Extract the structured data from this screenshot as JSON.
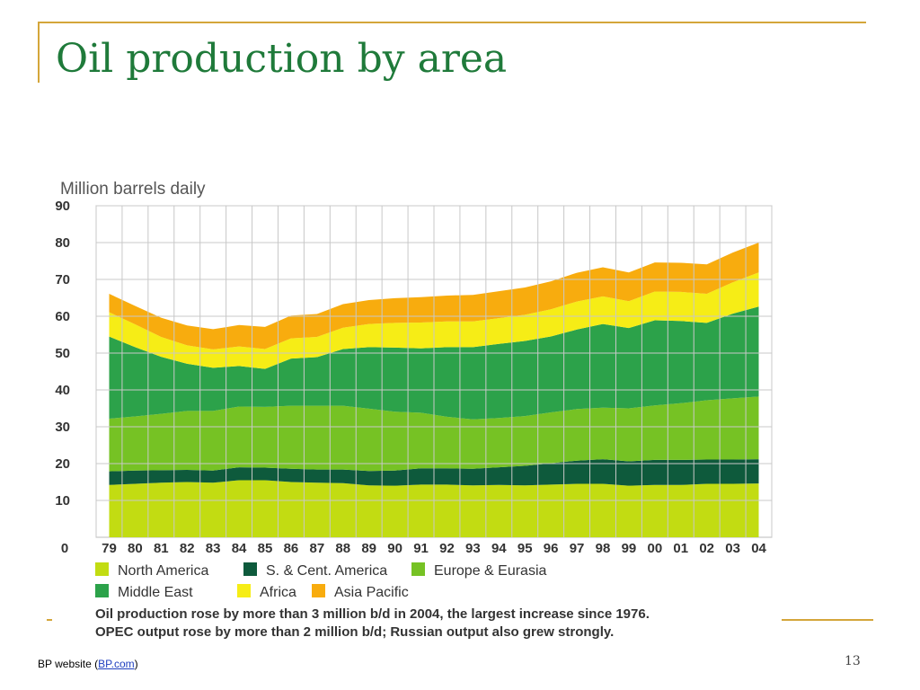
{
  "slide": {
    "title": "Oil production by area",
    "footer_text": "BP website (",
    "footer_link": "BP.com",
    "footer_close": ")",
    "page_number": "13"
  },
  "chart_data": {
    "type": "area",
    "stacked": true,
    "ylabel": "Million barrels daily",
    "xlabel": "",
    "ylim": [
      0,
      90
    ],
    "yticks": [
      0,
      10,
      20,
      30,
      40,
      50,
      60,
      70,
      80,
      90
    ],
    "grid": true,
    "legend_position": "bottom",
    "categories": [
      "79",
      "80",
      "81",
      "82",
      "83",
      "84",
      "85",
      "86",
      "87",
      "88",
      "89",
      "90",
      "91",
      "92",
      "93",
      "94",
      "95",
      "96",
      "97",
      "98",
      "99",
      "00",
      "01",
      "02",
      "03",
      "04"
    ],
    "series": [
      {
        "name": "North America",
        "color": "#c2dc12",
        "values": [
          14.2,
          14.5,
          14.8,
          15.0,
          14.8,
          15.5,
          15.5,
          15.0,
          14.8,
          14.7,
          14.1,
          14.0,
          14.3,
          14.3,
          14.1,
          14.2,
          14.1,
          14.3,
          14.5,
          14.5,
          14.0,
          14.2,
          14.2,
          14.5,
          14.5,
          14.6
        ]
      },
      {
        "name": "S. & Cent. America",
        "color": "#0e5a3c",
        "values": [
          3.7,
          3.6,
          3.4,
          3.3,
          3.3,
          3.5,
          3.4,
          3.6,
          3.6,
          3.7,
          3.9,
          4.1,
          4.4,
          4.4,
          4.5,
          4.8,
          5.3,
          5.8,
          6.3,
          6.7,
          6.6,
          6.8,
          6.8,
          6.6,
          6.6,
          6.6
        ]
      },
      {
        "name": "Europe & Eurasia",
        "color": "#76c224",
        "values": [
          14.3,
          14.7,
          15.3,
          16.0,
          16.2,
          16.5,
          16.5,
          17.1,
          17.3,
          17.3,
          16.9,
          16.0,
          15.1,
          14.0,
          13.4,
          13.4,
          13.5,
          13.8,
          14.0,
          14.0,
          14.4,
          14.8,
          15.4,
          16.1,
          16.6,
          17.0
        ]
      },
      {
        "name": "Middle East",
        "color": "#2ca24a",
        "values": [
          22.3,
          18.8,
          15.5,
          12.8,
          11.7,
          11.0,
          10.3,
          12.8,
          13.2,
          15.4,
          16.7,
          17.4,
          17.5,
          18.9,
          19.6,
          20.1,
          20.4,
          20.6,
          21.6,
          22.7,
          21.8,
          23.1,
          22.3,
          21.0,
          23.0,
          24.4
        ]
      },
      {
        "name": "Africa",
        "color": "#f6ed16",
        "values": [
          6.6,
          6.2,
          5.4,
          5.0,
          5.0,
          5.3,
          5.4,
          5.5,
          5.5,
          5.8,
          6.3,
          6.7,
          7.0,
          7.0,
          7.0,
          7.0,
          7.1,
          7.4,
          7.6,
          7.5,
          7.3,
          7.8,
          7.9,
          7.9,
          8.5,
          9.3
        ]
      },
      {
        "name": "Asia Pacific",
        "color": "#f8ac0e",
        "values": [
          5.0,
          5.0,
          5.2,
          5.4,
          5.5,
          5.8,
          6.0,
          6.2,
          6.2,
          6.4,
          6.5,
          6.7,
          6.9,
          7.0,
          7.2,
          7.3,
          7.4,
          7.6,
          7.8,
          7.9,
          7.8,
          7.9,
          7.9,
          8.0,
          8.1,
          8.1
        ]
      }
    ],
    "caption": [
      "Oil production rose by more than 3 million b/d in 2004, the largest increase since 1976.",
      "OPEC output rose by more than 2 million b/d; Russian output also grew strongly."
    ]
  }
}
